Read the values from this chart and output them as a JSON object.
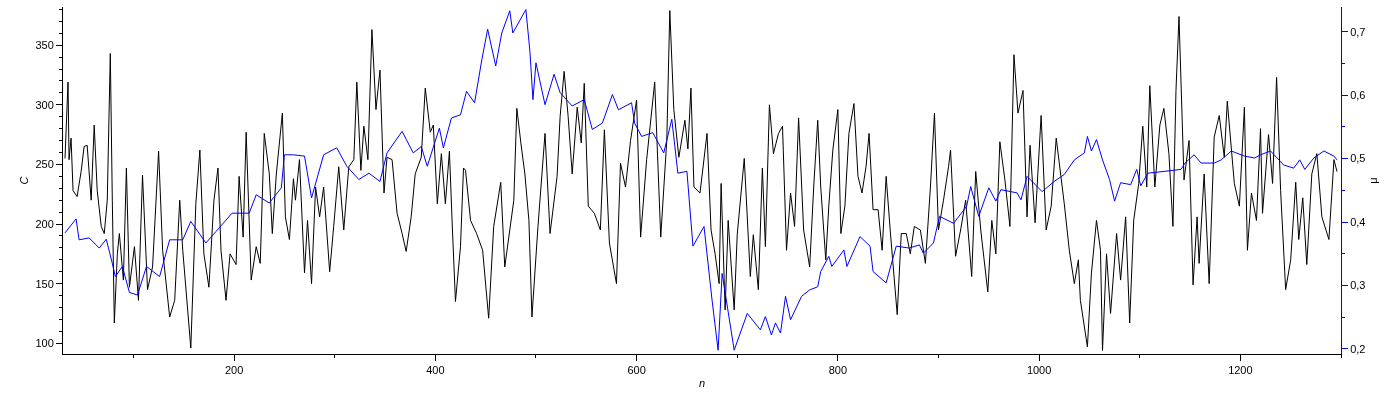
{
  "chart_data": {
    "type": "line",
    "xlabel": "n",
    "ylabel": "C",
    "y2label": "μ",
    "xlim": [
      30,
      1300
    ],
    "ylim": [
      91,
      382
    ],
    "y2lim": [
      0.192,
      0.739
    ],
    "xticks": [
      {
        "value": 100,
        "label": null
      },
      200,
      {
        "value": 300,
        "label": null
      },
      400,
      {
        "value": 500,
        "label": null
      },
      600,
      {
        "value": 700,
        "label": null
      },
      800,
      {
        "value": 900,
        "label": null
      },
      1000,
      {
        "value": 1100,
        "label": null
      },
      1200,
      {
        "value": 1300,
        "label": null
      }
    ],
    "yticks": [
      100,
      {
        "value": 110,
        "label": null
      },
      {
        "value": 120,
        "label": null
      },
      {
        "value": 130,
        "label": null
      },
      {
        "value": 140,
        "label": null
      },
      150,
      {
        "value": 160,
        "label": null
      },
      {
        "value": 170,
        "label": null
      },
      {
        "value": 180,
        "label": null
      },
      {
        "value": 190,
        "label": null
      },
      200,
      {
        "value": 210,
        "label": null
      },
      {
        "value": 220,
        "label": null
      },
      {
        "value": 230,
        "label": null
      },
      {
        "value": 240,
        "label": null
      },
      250,
      {
        "value": 260,
        "label": null
      },
      {
        "value": 270,
        "label": null
      },
      {
        "value": 280,
        "label": null
      },
      {
        "value": 290,
        "label": null
      },
      300,
      {
        "value": 310,
        "label": null
      },
      {
        "value": 320,
        "label": null
      },
      {
        "value": 330,
        "label": null
      },
      {
        "value": 340,
        "label": null
      },
      350,
      {
        "value": 360,
        "label": null
      },
      {
        "value": 370,
        "label": null
      },
      {
        "value": 380,
        "label": null
      }
    ],
    "y2ticks": [
      {
        "value": 0.2,
        "label": "0,2"
      },
      {
        "value": 0.25,
        "label": null
      },
      {
        "value": 0.3,
        "label": "0,3"
      },
      {
        "value": 0.35,
        "label": null
      },
      {
        "value": 0.4,
        "label": "0,4"
      },
      {
        "value": 0.45,
        "label": null
      },
      {
        "value": 0.5,
        "label": "0,5"
      },
      {
        "value": 0.55,
        "label": null
      },
      {
        "value": 0.6,
        "label": "0,6"
      },
      {
        "value": 0.65,
        "label": null
      },
      {
        "value": 0.7,
        "label": "0,7"
      }
    ],
    "marker": "none",
    "line_style": "solid",
    "series": [
      {
        "color": "#000000",
        "x": [
          32,
          35,
          36,
          38,
          40,
          44,
          48,
          51,
          54,
          58,
          61,
          64,
          68,
          71,
          74,
          77,
          79,
          81,
          84,
          86,
          90,
          93,
          96,
          101,
          105,
          109,
          114,
          119,
          125,
          129,
          136,
          141,
          146,
          149,
          157,
          162,
          166,
          170,
          175,
          180,
          184,
          187,
          192,
          196,
          202,
          205,
          209,
          212,
          217,
          222,
          226,
          230,
          235,
          238,
          242,
          248,
          251,
          255,
          259,
          261,
          265,
          270,
          273,
          277,
          281,
          285,
          289,
          295,
          299,
          304,
          309,
          314,
          319,
          322,
          326,
          329,
          333,
          337,
          341,
          345,
          349,
          352,
          357,
          362,
          367,
          371,
          376,
          380,
          386,
          390,
          395,
          398,
          402,
          406,
          410,
          414,
          417,
          420,
          425,
          428,
          430,
          435,
          441,
          447,
          453,
          458,
          465,
          469,
          478,
          481,
          485,
          489,
          493,
          496,
          502,
          509,
          514,
          521,
          524,
          528,
          532,
          536,
          541,
          545,
          548,
          552,
          558,
          564,
          568,
          573,
          580,
          584,
          589,
          594,
          600,
          604,
          610,
          618,
          624,
          630,
          633,
          637,
          642,
          648,
          651,
          654,
          657,
          663,
          670,
          674,
          678,
          682,
          684,
          688,
          691,
          697,
          700,
          707,
          713,
          716,
          721,
          725,
          728,
          732,
          736,
          741,
          745,
          749,
          753,
          757,
          761,
          766,
          772,
          776,
          780,
          783,
          788,
          791,
          795,
          800,
          803,
          807,
          811,
          816,
          820,
          824,
          828,
          831,
          835,
          840,
          844,
          848,
          852,
          859,
          863,
          868,
          872,
          876,
          882,
          887,
          892,
          896,
          900,
          905,
          910,
          912,
          917,
          922,
          927,
          933,
          937,
          942,
          949,
          953,
          957,
          961,
          966,
          971,
          975,
          979,
          984,
          988,
          991,
          996,
          1002,
          1007,
          1012,
          1017,
          1025,
          1030,
          1035,
          1039,
          1041,
          1048,
          1052,
          1057,
          1061,
          1063,
          1067,
          1071,
          1077,
          1081,
          1086,
          1090,
          1094,
          1099,
          1103,
          1107,
          1110,
          1115,
          1120,
          1124,
          1129,
          1133,
          1136,
          1139,
          1144,
          1149,
          1153,
          1157,
          1159,
          1164,
          1169,
          1174,
          1179,
          1184,
          1187,
          1194,
          1199,
          1204,
          1207,
          1211,
          1216,
          1220,
          1222,
          1228,
          1232,
          1236,
          1240,
          1245,
          1250,
          1255,
          1258,
          1262,
          1266,
          1271,
          1276,
          1281,
          1288,
          1293,
          1296
        ],
        "values": [
          255,
          319,
          254,
          272,
          228,
          223,
          244,
          265,
          266,
          220,
          283,
          228,
          198,
          192,
          220,
          343,
          220,
          117,
          175,
          192,
          153,
          247,
          147,
          181,
          136,
          241,
          145,
          164,
          261,
          178,
          122,
          136,
          220,
          178,
          96,
          217,
          262,
          175,
          147,
          220,
          247,
          178,
          136,
          175,
          166,
          240,
          189,
          277,
          153,
          181,
          167,
          276,
          242,
          192,
          242,
          293,
          206,
          187,
          238,
          220,
          254,
          159,
          203,
          150,
          231,
          206,
          231,
          160,
          198,
          248,
          195,
          248,
          254,
          319,
          245,
          282,
          254,
          363,
          296,
          329,
          226,
          256,
          254,
          209,
          192,
          177,
          206,
          242,
          256,
          314,
          277,
          283,
          217,
          259,
          217,
          261,
          195,
          135,
          181,
          247,
          245,
          203,
          192,
          178,
          121,
          198,
          235,
          164,
          220,
          297,
          268,
          242,
          203,
          122,
          198,
          276,
          192,
          240,
          290,
          328,
          290,
          242,
          298,
          268,
          318,
          215,
          209,
          195,
          279,
          184,
          150,
          251,
          231,
          270,
          304,
          189,
          254,
          319,
          189,
          270,
          379,
          296,
          256,
          287,
          263,
          314,
          231,
          226,
          276,
          195,
          175,
          150,
          234,
          128,
          203,
          128,
          191,
          255,
          156,
          191,
          145,
          247,
          181,
          300,
          259,
          276,
          282,
          178,
          226,
          198,
          289,
          195,
          164,
          231,
          287,
          231,
          170,
          215,
          262,
          296,
          192,
          215,
          276,
          301,
          240,
          226,
          248,
          276,
          212,
          212,
          178,
          240,
          195,
          124,
          192,
          192,
          175,
          198,
          195,
          167,
          231,
          293,
          195,
          220,
          248,
          262,
          173,
          195,
          220,
          156,
          244,
          195,
          143,
          203,
          175,
          269,
          237,
          198,
          342,
          293,
          312,
          206,
          266,
          201,
          291,
          195,
          215,
          272,
          217,
          178,
          150,
          170,
          136,
          97,
          159,
          203,
          178,
          94,
          175,
          125,
          192,
          153,
          206,
          117,
          203,
          234,
          282,
          231,
          316,
          231,
          283,
          297,
          259,
          198,
          312,
          374,
          237,
          270,
          149,
          206,
          167,
          242,
          150,
          273,
          291,
          256,
          303,
          234,
          215,
          298,
          178,
          226,
          203,
          280,
          209,
          275,
          234,
          323,
          228,
          145,
          170,
          235,
          187,
          222,
          166,
          242,
          259,
          206,
          187,
          254,
          244
        ]
      },
      {
        "color": "#0000ff",
        "axis": "y2",
        "x": [
          32,
          43,
          46,
          56,
          66,
          73,
          79,
          82,
          89,
          96,
          104,
          113,
          126,
          136,
          149,
          157,
          172,
          182,
          198,
          215,
          222,
          235,
          247,
          250,
          259,
          270,
          277,
          289,
          302,
          312,
          324,
          334,
          345,
          352,
          367,
          378,
          386,
          392,
          404,
          408,
          416,
          425,
          431,
          439,
          446,
          452,
          460,
          466,
          474,
          477,
          490,
          494,
          497,
          500,
          509,
          518,
          524,
          536,
          548,
          556,
          566,
          576,
          582,
          595,
          598,
          605,
          616,
          627,
          635,
          641,
          650,
          656,
          667,
          675,
          681,
          685,
          697,
          710,
          723,
          728,
          734,
          738,
          743,
          748,
          753,
          764,
          772,
          780,
          783,
          791,
          794,
          806,
          809,
          822,
          832,
          835,
          848,
          858,
          871,
          881,
          885,
          895,
          901,
          915,
          928,
          932,
          940,
          950,
          957,
          962,
          978,
          982,
          988,
          1003,
          1015,
          1025,
          1035,
          1045,
          1048,
          1052,
          1057,
          1063,
          1070,
          1075,
          1081,
          1091,
          1097,
          1101,
          1108,
          1125,
          1141,
          1145,
          1154,
          1161,
          1174,
          1181,
          1191,
          1204,
          1214,
          1220,
          1230,
          1243,
          1253,
          1259,
          1264,
          1273,
          1283,
          1293,
          1296
        ],
        "values": [
          0.383,
          0.405,
          0.372,
          0.375,
          0.359,
          0.373,
          0.335,
          0.314,
          0.33,
          0.289,
          0.285,
          0.33,
          0.314,
          0.372,
          0.372,
          0.401,
          0.367,
          0.385,
          0.414,
          0.414,
          0.443,
          0.43,
          0.454,
          0.506,
          0.506,
          0.504,
          0.438,
          0.506,
          0.517,
          0.488,
          0.467,
          0.477,
          0.464,
          0.509,
          0.543,
          0.509,
          0.519,
          0.488,
          0.548,
          0.517,
          0.564,
          0.569,
          0.606,
          0.588,
          0.654,
          0.704,
          0.646,
          0.698,
          0.733,
          0.698,
          0.735,
          0.669,
          0.593,
          0.651,
          0.585,
          0.633,
          0.604,
          0.583,
          0.593,
          0.546,
          0.556,
          0.601,
          0.577,
          0.588,
          0.556,
          0.535,
          0.541,
          0.509,
          0.562,
          0.477,
          0.48,
          0.362,
          0.393,
          0.277,
          0.198,
          0.319,
          0.198,
          0.256,
          0.23,
          0.251,
          0.222,
          0.241,
          0.225,
          0.283,
          0.246,
          0.283,
          0.293,
          0.298,
          0.322,
          0.346,
          0.33,
          0.356,
          0.33,
          0.377,
          0.362,
          0.322,
          0.304,
          0.362,
          0.359,
          0.364,
          0.351,
          0.367,
          0.409,
          0.398,
          0.425,
          0.456,
          0.409,
          0.454,
          0.433,
          0.451,
          0.446,
          0.435,
          0.472,
          0.448,
          0.464,
          0.475,
          0.498,
          0.509,
          0.535,
          0.512,
          0.53,
          0.498,
          0.467,
          0.433,
          0.462,
          0.459,
          0.483,
          0.457,
          0.477,
          0.48,
          0.483,
          0.493,
          0.506,
          0.493,
          0.493,
          0.498,
          0.512,
          0.504,
          0.501,
          0.506,
          0.512,
          0.49,
          0.485,
          0.498,
          0.483,
          0.501,
          0.512,
          0.504,
          0.498
        ]
      }
    ]
  }
}
